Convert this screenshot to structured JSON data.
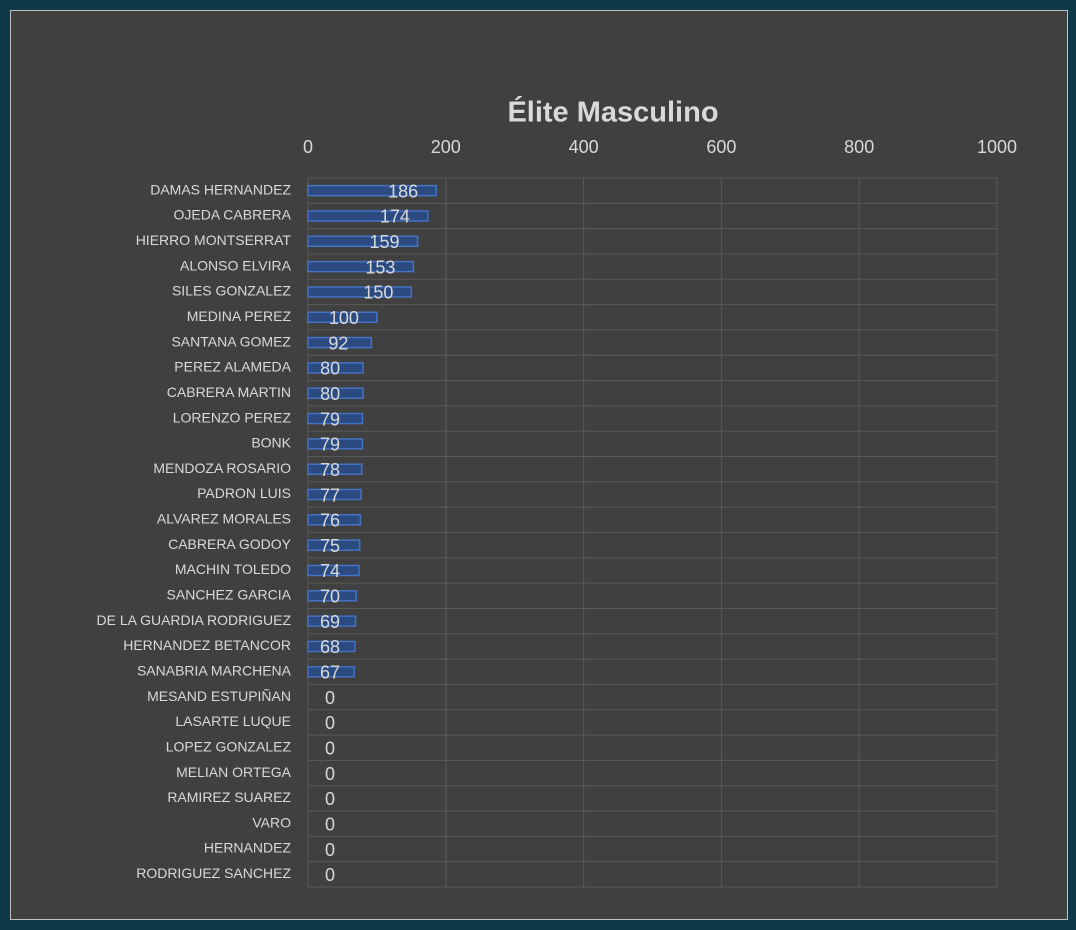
{
  "chart_data": {
    "type": "bar",
    "orientation": "horizontal",
    "title": "Élite Masculino",
    "categories": [
      "DAMAS HERNANDEZ",
      "OJEDA CABRERA",
      "HIERRO MONTSERRAT",
      "ALONSO ELVIRA",
      "SILES GONZALEZ",
      "MEDINA PEREZ",
      "SANTANA GOMEZ",
      "PEREZ ALAMEDA",
      "CABRERA MARTIN",
      "LORENZO PEREZ",
      "BONK",
      "MENDOZA ROSARIO",
      "PADRON LUIS",
      "ALVAREZ MORALES",
      "CABRERA GODOY",
      "MACHIN TOLEDO",
      "SANCHEZ GARCIA",
      "DE LA GUARDIA RODRIGUEZ",
      "HERNANDEZ BETANCOR",
      "SANABRIA MARCHENA",
      "MESAND ESTUPIÑAN",
      "LASARTE LUQUE",
      "LOPEZ GONZALEZ",
      "MELIAN ORTEGA",
      "RAMIREZ SUAREZ",
      "VARO",
      "HERNANDEZ",
      "RODRIGUEZ SANCHEZ"
    ],
    "values": [
      186,
      174,
      159,
      153,
      150,
      100,
      92,
      80,
      80,
      79,
      79,
      78,
      77,
      76,
      75,
      74,
      70,
      69,
      68,
      67,
      0,
      0,
      0,
      0,
      0,
      0,
      0,
      0
    ],
    "color": "#4472c4",
    "xlim": [
      0,
      1000
    ],
    "xticks": [
      0,
      200,
      400,
      600,
      800,
      1000
    ],
    "grid": true
  }
}
